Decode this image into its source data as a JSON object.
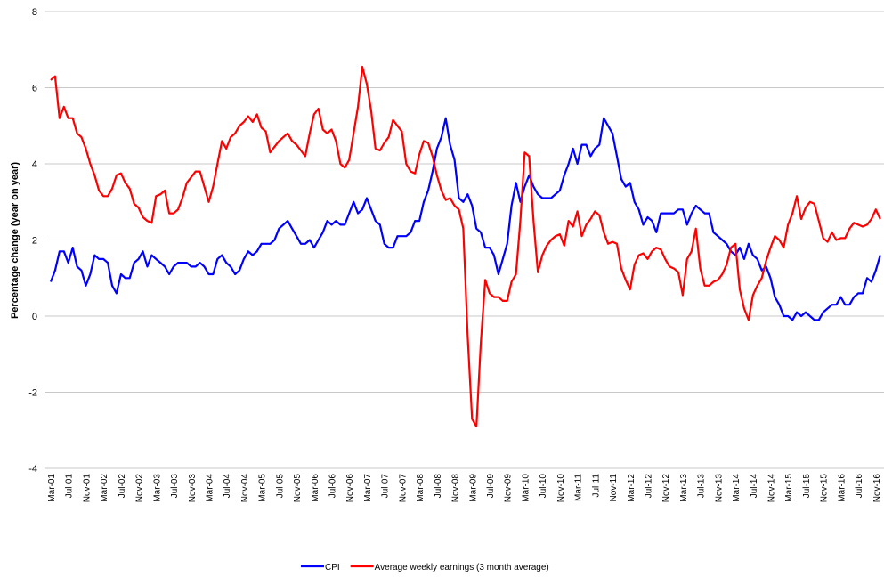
{
  "chart_data": {
    "type": "line",
    "y_label": "Percentage change (year on year)",
    "ylim": [
      -4,
      8
    ],
    "yticks": [
      -4,
      -2,
      0,
      2,
      4,
      6,
      8
    ],
    "grid": true,
    "categories": [
      "Mar-01",
      null,
      null,
      null,
      "Jul-01",
      null,
      null,
      null,
      "Nov-01",
      null,
      null,
      null,
      "Mar-02",
      null,
      null,
      null,
      "Jul-02",
      null,
      null,
      null,
      "Nov-02",
      null,
      null,
      null,
      "Mar-03",
      null,
      null,
      null,
      "Jul-03",
      null,
      null,
      null,
      "Nov-03",
      null,
      null,
      null,
      "Mar-04",
      null,
      null,
      null,
      "Jul-04",
      null,
      null,
      null,
      "Nov-04",
      null,
      null,
      null,
      "Mar-05",
      null,
      null,
      null,
      "Jul-05",
      null,
      null,
      null,
      "Nov-05",
      null,
      null,
      null,
      "Mar-06",
      null,
      null,
      null,
      "Jul-06",
      null,
      null,
      null,
      "Nov-06",
      null,
      null,
      null,
      "Mar-07",
      null,
      null,
      null,
      "Jul-07",
      null,
      null,
      null,
      "Nov-07",
      null,
      null,
      null,
      "Mar-08",
      null,
      null,
      null,
      "Jul-08",
      null,
      null,
      null,
      "Nov-08",
      null,
      null,
      null,
      "Mar-09",
      null,
      null,
      null,
      "Jul-09",
      null,
      null,
      null,
      "Nov-09",
      null,
      null,
      null,
      "Mar-10",
      null,
      null,
      null,
      "Jul-10",
      null,
      null,
      null,
      "Nov-10",
      null,
      null,
      null,
      "Mar-11",
      null,
      null,
      null,
      "Jul-11",
      null,
      null,
      null,
      "Nov-11",
      null,
      null,
      null,
      "Mar-12",
      null,
      null,
      null,
      "Jul-12",
      null,
      null,
      null,
      "Nov-12",
      null,
      null,
      null,
      "Mar-13",
      null,
      null,
      null,
      "Jul-13",
      null,
      null,
      null,
      "Nov-13",
      null,
      null,
      null,
      "Mar-14",
      null,
      null,
      null,
      "Jul-14",
      null,
      null,
      null,
      "Nov-14",
      null,
      null,
      null,
      "Mar-15",
      null,
      null,
      null,
      "Jul-15",
      null,
      null,
      null,
      "Nov-15",
      null,
      null,
      null,
      "Mar-16",
      null,
      null,
      null,
      "Jul-16",
      null,
      null,
      null,
      "Nov-16",
      null
    ],
    "legend": "bottom",
    "series": [
      {
        "name": "CPI",
        "color": "#0000ff",
        "values": [
          0.9,
          1.2,
          1.7,
          1.7,
          1.4,
          1.8,
          1.3,
          1.2,
          0.8,
          1.1,
          1.6,
          1.5,
          1.5,
          1.4,
          0.8,
          0.6,
          1.1,
          1.0,
          1.0,
          1.4,
          1.5,
          1.7,
          1.3,
          1.6,
          1.5,
          1.4,
          1.3,
          1.1,
          1.3,
          1.4,
          1.4,
          1.4,
          1.3,
          1.3,
          1.4,
          1.3,
          1.1,
          1.1,
          1.5,
          1.6,
          1.4,
          1.3,
          1.1,
          1.2,
          1.5,
          1.7,
          1.6,
          1.7,
          1.9,
          1.9,
          1.9,
          2.0,
          2.3,
          2.4,
          2.5,
          2.3,
          2.1,
          1.9,
          1.9,
          2.0,
          1.8,
          2.0,
          2.2,
          2.5,
          2.4,
          2.5,
          2.4,
          2.4,
          2.7,
          3.0,
          2.7,
          2.8,
          3.1,
          2.8,
          2.5,
          2.4,
          1.9,
          1.8,
          1.8,
          2.1,
          2.1,
          2.1,
          2.2,
          2.5,
          2.5,
          3.0,
          3.3,
          3.8,
          4.4,
          4.7,
          5.2,
          4.5,
          4.1,
          3.1,
          3.0,
          3.2,
          2.9,
          2.3,
          2.2,
          1.8,
          1.8,
          1.6,
          1.1,
          1.5,
          1.9,
          2.9,
          3.5,
          3.0,
          3.4,
          3.7,
          3.4,
          3.2,
          3.1,
          3.1,
          3.1,
          3.2,
          3.3,
          3.7,
          4.0,
          4.4,
          4.0,
          4.5,
          4.5,
          4.2,
          4.4,
          4.5,
          5.2,
          5.0,
          4.8,
          4.2,
          3.6,
          3.4,
          3.5,
          3.0,
          2.8,
          2.4,
          2.6,
          2.5,
          2.2,
          2.7,
          2.7,
          2.7,
          2.7,
          2.8,
          2.8,
          2.4,
          2.7,
          2.9,
          2.8,
          2.7,
          2.7,
          2.2,
          2.1,
          2.0,
          1.9,
          1.7,
          1.6,
          1.8,
          1.5,
          1.9,
          1.6,
          1.5,
          1.2,
          1.3,
          1.0,
          0.5,
          0.3,
          0.0,
          0.0,
          -0.1,
          0.1,
          0.0,
          0.1,
          0.0,
          -0.1,
          -0.1,
          0.1,
          0.2,
          0.3,
          0.3,
          0.5,
          0.3,
          0.3,
          0.5,
          0.6,
          0.6,
          1.0,
          0.9,
          1.2,
          1.6
        ]
      },
      {
        "name": "Average weekly earnings (3 month average)",
        "color": "#ff0000",
        "values": [
          6.2,
          6.3,
          5.2,
          5.5,
          5.2,
          5.2,
          4.8,
          4.7,
          4.4,
          4.0,
          3.7,
          3.3,
          3.15,
          3.15,
          3.35,
          3.7,
          3.75,
          3.5,
          3.35,
          2.95,
          2.85,
          2.6,
          2.5,
          2.45,
          3.15,
          3.2,
          3.3,
          2.7,
          2.7,
          2.8,
          3.1,
          3.5,
          3.65,
          3.8,
          3.8,
          3.4,
          3.0,
          3.4,
          4.0,
          4.6,
          4.4,
          4.7,
          4.8,
          5.0,
          5.1,
          5.25,
          5.1,
          5.3,
          4.95,
          4.85,
          4.3,
          4.45,
          4.6,
          4.7,
          4.8,
          4.6,
          4.5,
          4.35,
          4.2,
          4.8,
          5.3,
          5.45,
          4.9,
          4.8,
          4.9,
          4.6,
          4.0,
          3.9,
          4.1,
          4.8,
          5.5,
          6.55,
          6.1,
          5.4,
          4.4,
          4.35,
          4.55,
          4.7,
          5.15,
          5.0,
          4.85,
          4.0,
          3.8,
          3.75,
          4.25,
          4.6,
          4.55,
          4.2,
          3.7,
          3.3,
          3.05,
          3.1,
          2.9,
          2.8,
          2.3,
          -0.5,
          -2.7,
          -2.9,
          -0.7,
          0.95,
          0.6,
          0.5,
          0.5,
          0.4,
          0.4,
          0.9,
          1.1,
          2.5,
          4.3,
          4.2,
          2.5,
          1.15,
          1.6,
          1.85,
          2.0,
          2.1,
          2.15,
          1.85,
          2.5,
          2.35,
          2.75,
          2.1,
          2.4,
          2.55,
          2.75,
          2.65,
          2.2,
          1.9,
          1.95,
          1.9,
          1.25,
          0.95,
          0.7,
          1.35,
          1.6,
          1.65,
          1.5,
          1.7,
          1.8,
          1.75,
          1.5,
          1.3,
          1.25,
          1.15,
          0.55,
          1.5,
          1.7,
          2.3,
          1.25,
          0.8,
          0.8,
          0.9,
          0.95,
          1.1,
          1.35,
          1.8,
          1.9,
          0.7,
          0.2,
          -0.1,
          0.55,
          0.8,
          1.0,
          1.45,
          1.8,
          2.1,
          2.0,
          1.8,
          2.4,
          2.7,
          3.15,
          2.55,
          2.85,
          3.0,
          2.95,
          2.5,
          2.05,
          1.95,
          2.2,
          2.0,
          2.05,
          2.05,
          2.3,
          2.45,
          2.4,
          2.35,
          2.4,
          2.55,
          2.8,
          2.55
        ]
      }
    ]
  }
}
